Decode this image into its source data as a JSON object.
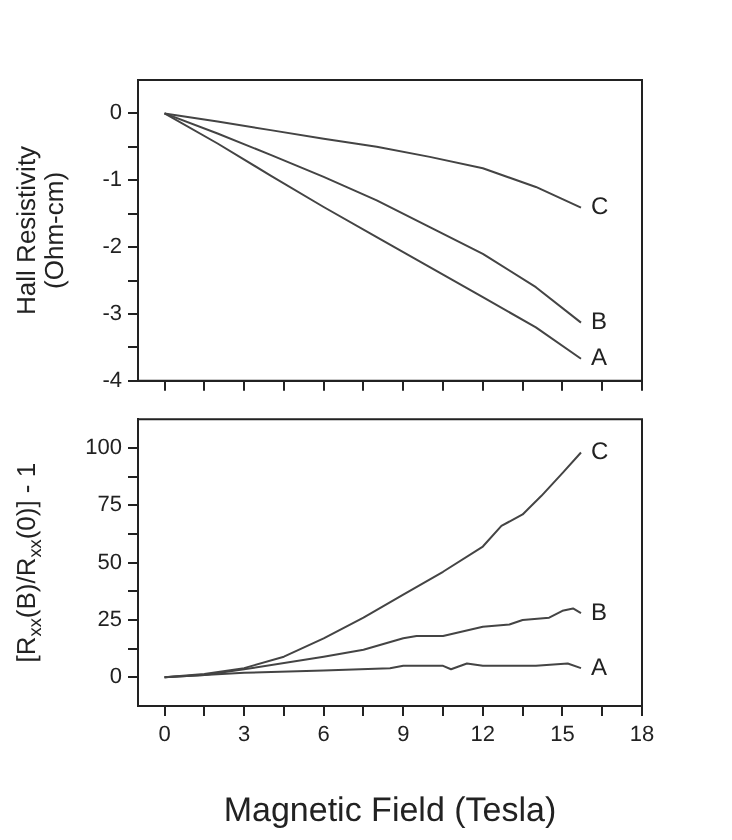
{
  "chart_data": [
    {
      "type": "line",
      "ylabel": "Hall Resistivity\n(Ohm-cm)",
      "tick_labels": "y",
      "legend": false,
      "xlim": [
        -1,
        18
      ],
      "xticks": [
        0,
        {
          "value": 1.5,
          "label": null
        },
        3,
        {
          "value": 4.5,
          "label": null
        },
        6,
        {
          "value": 7.5,
          "label": null
        },
        9,
        {
          "value": 10.5,
          "label": null
        },
        12,
        {
          "value": 13.5,
          "label": null
        },
        15,
        {
          "value": 16.5,
          "label": null
        },
        18
      ],
      "ylim": [
        -4,
        0.5
      ],
      "yticks": [
        -4,
        {
          "value": -3.5,
          "label": null
        },
        -3,
        {
          "value": -2.5,
          "label": null
        },
        -2,
        {
          "value": -1.5,
          "label": null
        },
        -1,
        {
          "value": -0.5,
          "label": null
        },
        0
      ],
      "series": [
        {
          "name": "C",
          "color": "#444444",
          "x": [
            0,
            2,
            4,
            6,
            8,
            10,
            12,
            14,
            15.7
          ],
          "values": [
            0,
            -0.12,
            -0.25,
            -0.38,
            -0.5,
            -0.65,
            -0.82,
            -1.1,
            -1.41
          ]
        },
        {
          "name": "B",
          "color": "#444444",
          "x": [
            0,
            2,
            4,
            6,
            8,
            10,
            12,
            14,
            15.7
          ],
          "values": [
            0,
            -0.3,
            -0.62,
            -0.95,
            -1.3,
            -1.7,
            -2.1,
            -2.6,
            -3.13
          ]
        },
        {
          "name": "A",
          "color": "#444444",
          "x": [
            0,
            2,
            4,
            6,
            8,
            10,
            12,
            14,
            15.7
          ],
          "values": [
            0,
            -0.45,
            -0.93,
            -1.4,
            -1.85,
            -2.3,
            -2.75,
            -3.2,
            -3.67
          ]
        }
      ]
    },
    {
      "type": "line",
      "ylabel": "[R$_{xx}$(B)/R$_{xx}$(0)] - 1",
      "xlabel": "Magnetic Field (Tesla)",
      "legend": false,
      "xlim": [
        -1,
        18
      ],
      "xticks": [
        0,
        {
          "value": 1.5,
          "label": null
        },
        3,
        {
          "value": 4.5,
          "label": null
        },
        6,
        {
          "value": 7.5,
          "label": null
        },
        9,
        {
          "value": 10.5,
          "label": null
        },
        12,
        {
          "value": 13.5,
          "label": null
        },
        15,
        {
          "value": 16.5,
          "label": null
        },
        18
      ],
      "ylim": [
        -12.5,
        112.5
      ],
      "yticks": [
        0,
        {
          "value": 12.5,
          "label": null
        },
        25,
        {
          "value": 37.5,
          "label": null
        },
        50,
        {
          "value": 62.5,
          "label": null
        },
        75,
        {
          "value": 87.5,
          "label": null
        },
        100
      ],
      "series": [
        {
          "name": "C",
          "color": "#444444",
          "x": [
            0,
            1.5,
            3,
            4.5,
            6,
            7.5,
            9,
            10.5,
            12,
            12.7,
            13.5,
            14.2,
            15,
            15.7
          ],
          "values": [
            0,
            1.5,
            4,
            9,
            17,
            26,
            36,
            46,
            57,
            66,
            71,
            79,
            89,
            98
          ]
        },
        {
          "name": "B",
          "color": "#444444",
          "x": [
            0,
            1.5,
            3,
            6,
            7.5,
            9,
            9.5,
            10.5,
            12,
            13,
            13.5,
            14.5,
            15,
            15.4,
            15.7
          ],
          "values": [
            0,
            1,
            3.5,
            9,
            12,
            17,
            18,
            18,
            22,
            23,
            25,
            26,
            29,
            30,
            28
          ]
        },
        {
          "name": "A",
          "color": "#444444",
          "x": [
            0,
            3,
            6,
            8.5,
            9,
            10.5,
            10.8,
            11.4,
            12,
            14,
            15.2,
            15.7
          ],
          "values": [
            0,
            2,
            3,
            4,
            5,
            5,
            3.5,
            6,
            5,
            5,
            6,
            4
          ]
        }
      ]
    }
  ]
}
